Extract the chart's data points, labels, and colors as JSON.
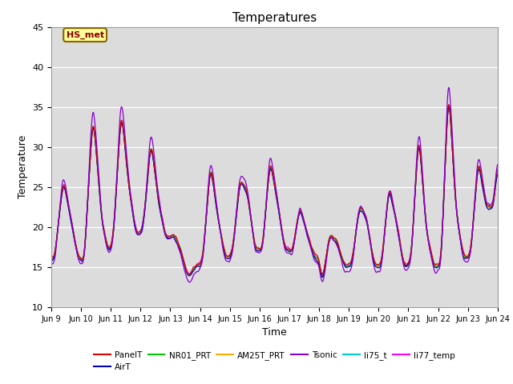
{
  "title": "Temperatures",
  "xlabel": "Time",
  "ylabel": "Temperature",
  "ylim": [
    10,
    45
  ],
  "background_color": "#dcdcdc",
  "legend_entries": [
    "PanelT",
    "AirT",
    "NR01_PRT",
    "AM25T_PRT",
    "Tsonic",
    "li75_t",
    "li77_temp"
  ],
  "legend_colors": [
    "#dd0000",
    "#0000bb",
    "#00cc00",
    "#ffaa00",
    "#8800cc",
    "#00cccc",
    "#ff00ff"
  ],
  "annotation_text": "HS_met",
  "annotation_facecolor": "#ffff99",
  "annotation_edgecolor": "#886600",
  "annotation_textcolor": "#880000",
  "tick_labels": [
    "Jun 9",
    "Jun 10",
    "Jun 11",
    "Jun 12",
    "Jun 13",
    "Jun 14",
    "Jun 15",
    "Jun 16",
    "Jun 17",
    "Jun 18",
    "Jun 19",
    "Jun 20",
    "Jun 21",
    "Jun 22",
    "Jun 23",
    "Jun 24"
  ],
  "yticks": [
    10,
    15,
    20,
    25,
    30,
    35,
    40,
    45
  ],
  "n_ticks": 16,
  "figsize": [
    6.4,
    4.8
  ],
  "dpi": 100
}
